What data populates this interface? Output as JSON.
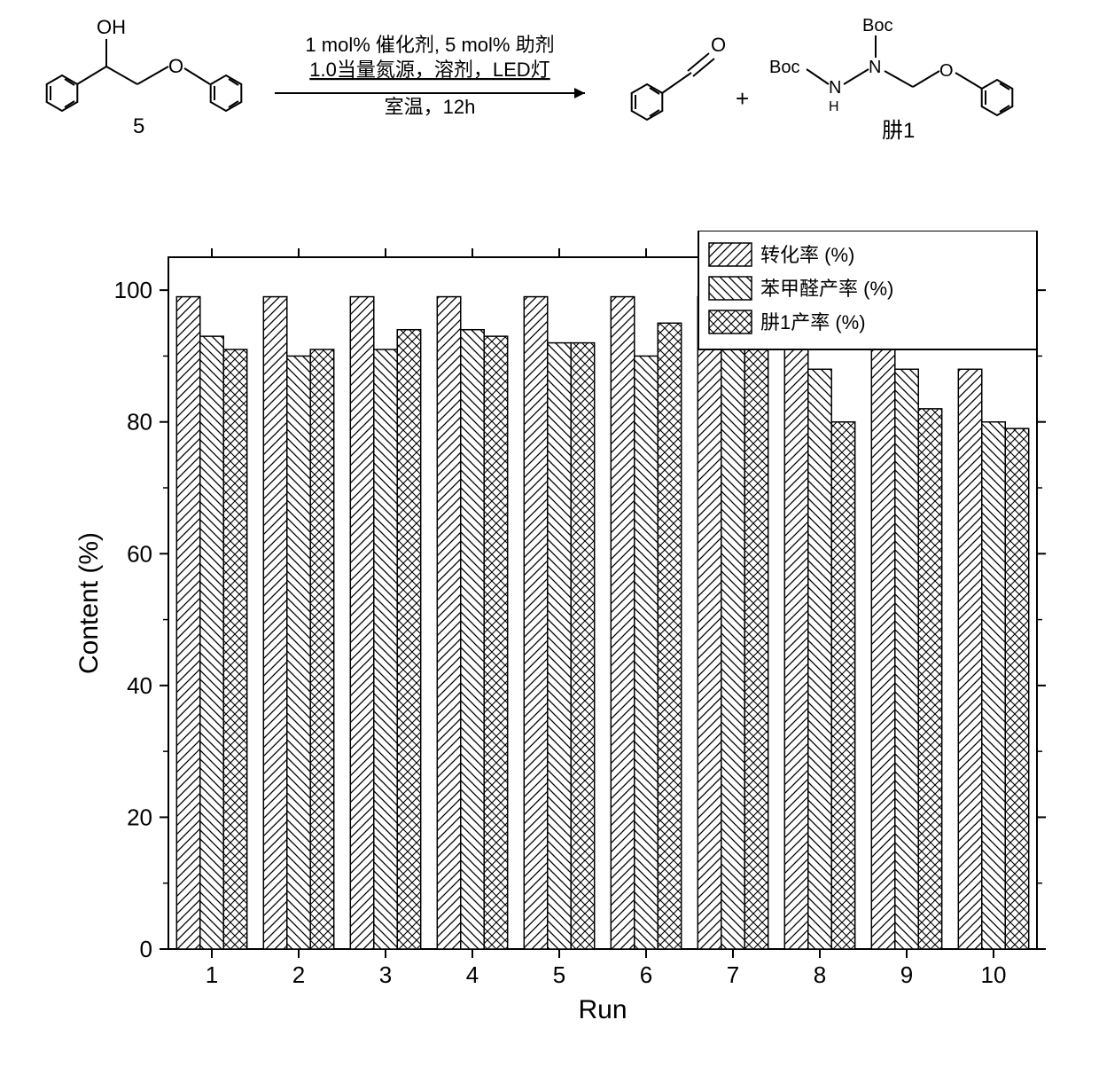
{
  "scheme": {
    "reactant_label": "5",
    "oh_label": "OH",
    "aldehyde_label": "O",
    "boc1": "Boc",
    "boc2": "Boc",
    "nh_label": "H",
    "n_label": "N",
    "plus": "+",
    "product2_label": "肼1",
    "cond_line1": "1 mol% 催化剂, 5 mol% 助剂",
    "cond_line2": "1.0当量氮源，溶剂，LED灯",
    "cond_line3": "室温，12h"
  },
  "legend": {
    "items": [
      {
        "label": "转化率 (%)",
        "pattern": "hatch-diag1"
      },
      {
        "label": "苯甲醛产率 (%)",
        "pattern": "hatch-diag2"
      },
      {
        "label": "肼1产率 (%)",
        "pattern": "hatch-cross"
      }
    ],
    "border_color": "#000000",
    "text_color": "#000000",
    "fontsize": 22
  },
  "chart": {
    "type": "bar",
    "xlabel": "Run",
    "ylabel": "Content (%)",
    "label_fontsize": 30,
    "tick_fontsize": 26,
    "xlim": [
      0.5,
      10.5
    ],
    "ylim": [
      0,
      105
    ],
    "ytick_step": 20,
    "yticks": [
      0,
      20,
      40,
      60,
      80,
      100
    ],
    "categories": [
      "1",
      "2",
      "3",
      "4",
      "5",
      "6",
      "7",
      "8",
      "9",
      "10"
    ],
    "bar_width": 0.27,
    "group_gap": 0.19,
    "bar_fill": "#ffffff",
    "bar_stroke": "#000000",
    "background_color": "#ffffff",
    "axis_color": "#000000",
    "series": [
      {
        "name": "转化率 (%)",
        "pattern": "hatch-diag1",
        "values": [
          99,
          99,
          99,
          99,
          99,
          99,
          99,
          97,
          93,
          88
        ]
      },
      {
        "name": "苯甲醛产率 (%)",
        "pattern": "hatch-diag2",
        "values": [
          93,
          90,
          91,
          94,
          92,
          90,
          95,
          88,
          88,
          80
        ]
      },
      {
        "name": "肼1产率 (%)",
        "pattern": "hatch-cross",
        "values": [
          91,
          91,
          94,
          93,
          92,
          95,
          92,
          80,
          82,
          79
        ]
      }
    ]
  }
}
